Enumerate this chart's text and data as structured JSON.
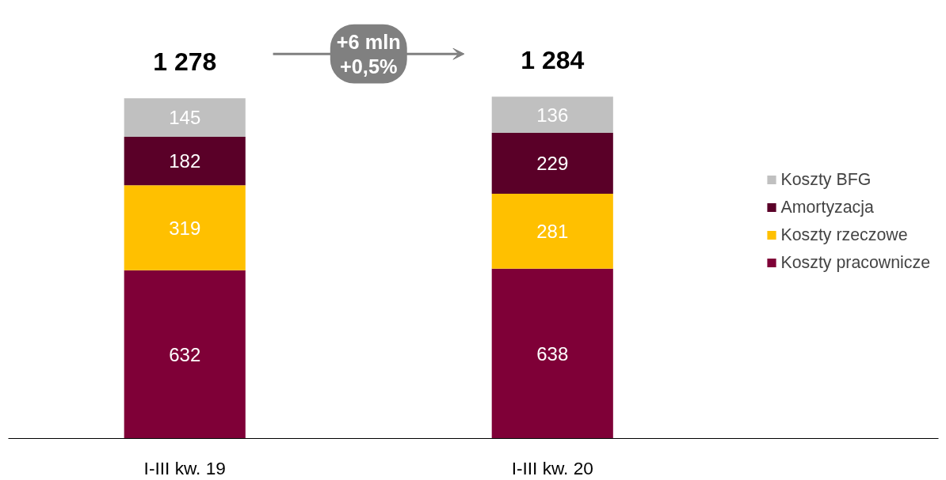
{
  "chart_data": {
    "type": "bar",
    "stacked": true,
    "categories": [
      "I-III kw. 19",
      "I-III kw. 20"
    ],
    "series": [
      {
        "name": "Koszty pracownicze",
        "color": "#7f0037",
        "values": [
          632,
          638
        ]
      },
      {
        "name": "Koszty rzeczowe",
        "color": "#ffc000",
        "values": [
          319,
          281
        ]
      },
      {
        "name": "Amortyzacja",
        "color": "#5a0028",
        "values": [
          182,
          229
        ]
      },
      {
        "name": "Koszty BFG",
        "color": "#c0c0c0",
        "values": [
          145,
          136
        ]
      }
    ],
    "data_labels": true,
    "totals": [
      "1 278",
      "1 284"
    ],
    "annotations": [
      "+6 mln\n+0,5%"
    ],
    "legend": "right",
    "grid": false
  }
}
